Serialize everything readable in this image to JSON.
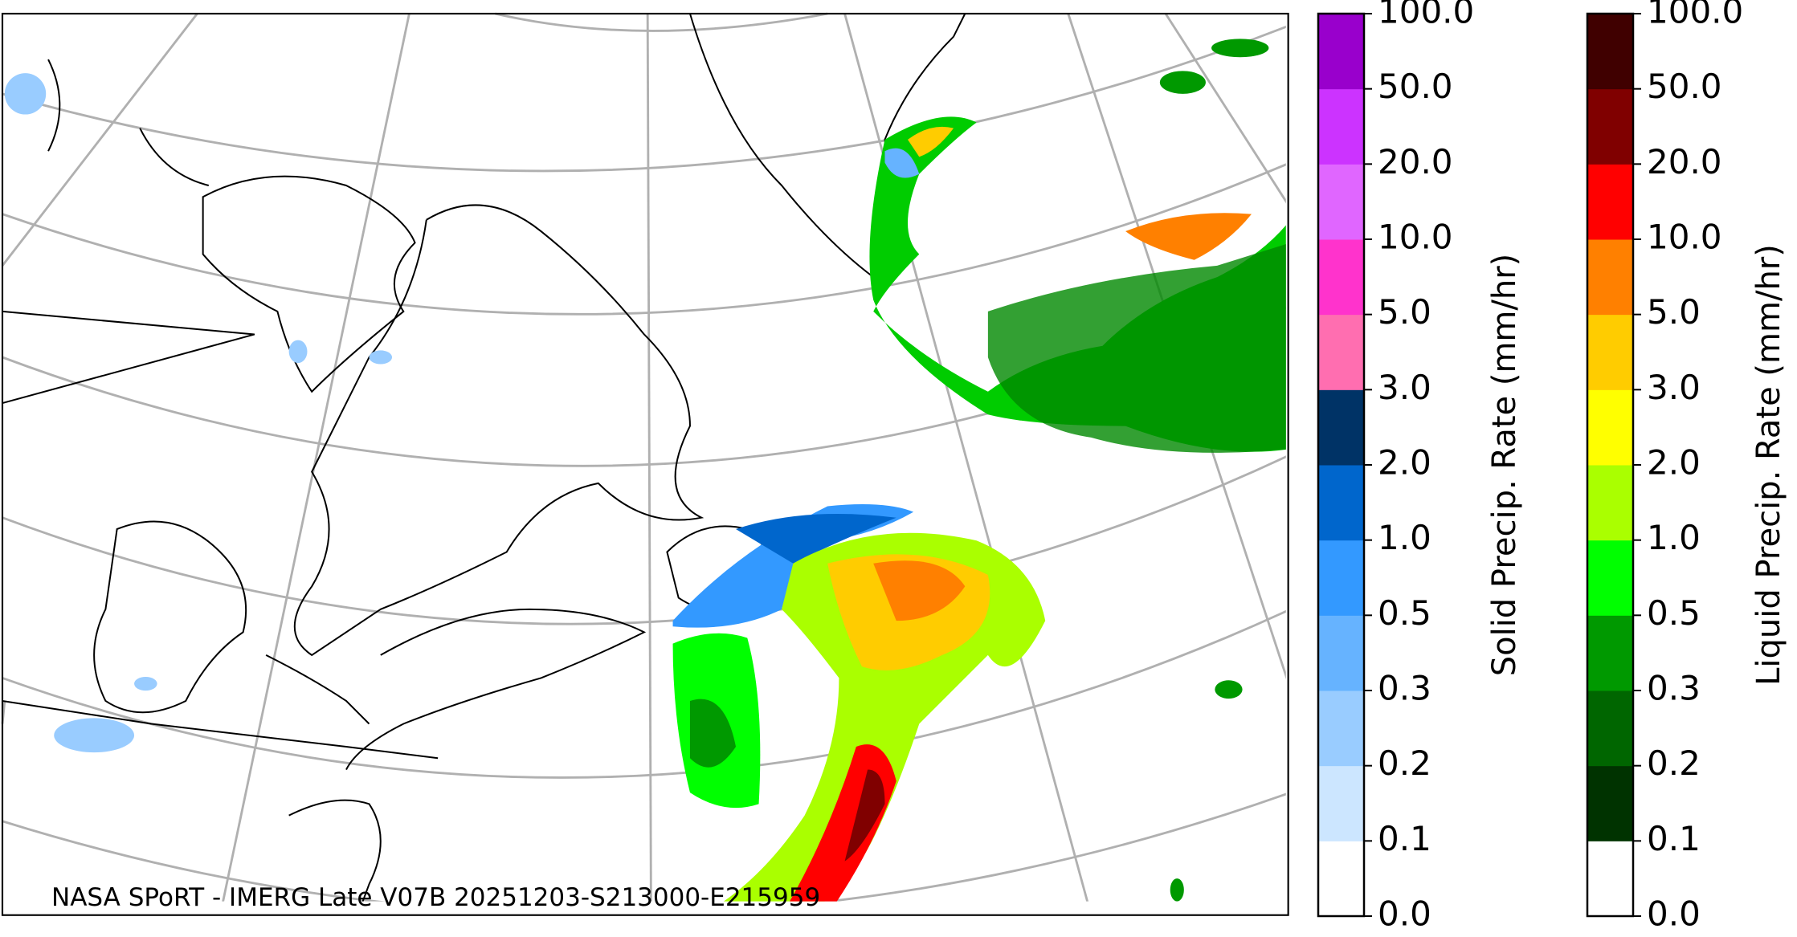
{
  "map": {
    "caption": "NASA SPoRT - IMERG Late V07B 20251203-S213000-E215959"
  },
  "colorbars": [
    {
      "title": "Solid Precip. Rate (mm/hr)",
      "ticks": [
        {
          "value": 0,
          "label": "0.0"
        },
        {
          "value": 0.1,
          "label": "0.1"
        },
        {
          "value": 0.2,
          "label": "0.2"
        },
        {
          "value": 0.3,
          "label": "0.3"
        },
        {
          "value": 0.5,
          "label": "0.5"
        },
        {
          "value": 1,
          "label": "1.0"
        },
        {
          "value": 2,
          "label": "2.0"
        },
        {
          "value": 3,
          "label": "3.0"
        },
        {
          "value": 5,
          "label": "5.0"
        },
        {
          "value": 10,
          "label": "10.0"
        },
        {
          "value": 20,
          "label": "20.0"
        },
        {
          "value": 50,
          "label": "50.0"
        },
        {
          "value": 100,
          "label": "100.0"
        }
      ],
      "colors": [
        "#ffffff",
        "#cce6ff",
        "#99ccff",
        "#66b3ff",
        "#3399ff",
        "#0066cc",
        "#003366",
        "#ff6eb0",
        "#ff33cc",
        "#e066ff",
        "#cc33ff",
        "#9900cc"
      ]
    },
    {
      "title": "Liquid Precip. Rate (mm/hr)",
      "ticks": [
        {
          "value": 0,
          "label": "0.0"
        },
        {
          "value": 0.1,
          "label": "0.1"
        },
        {
          "value": 0.2,
          "label": "0.2"
        },
        {
          "value": 0.3,
          "label": "0.3"
        },
        {
          "value": 0.5,
          "label": "0.5"
        },
        {
          "value": 1,
          "label": "1.0"
        },
        {
          "value": 2,
          "label": "2.0"
        },
        {
          "value": 3,
          "label": "3.0"
        },
        {
          "value": 5,
          "label": "5.0"
        },
        {
          "value": 10,
          "label": "10.0"
        },
        {
          "value": 20,
          "label": "20.0"
        },
        {
          "value": 50,
          "label": "50.0"
        },
        {
          "value": 100,
          "label": "100.0"
        }
      ],
      "colors": [
        "#ffffff",
        "#003300",
        "#006600",
        "#009900",
        "#00ff00",
        "#aaff00",
        "#ffff00",
        "#ffcc00",
        "#ff8000",
        "#ff0000",
        "#800000",
        "#400000"
      ]
    }
  ]
}
